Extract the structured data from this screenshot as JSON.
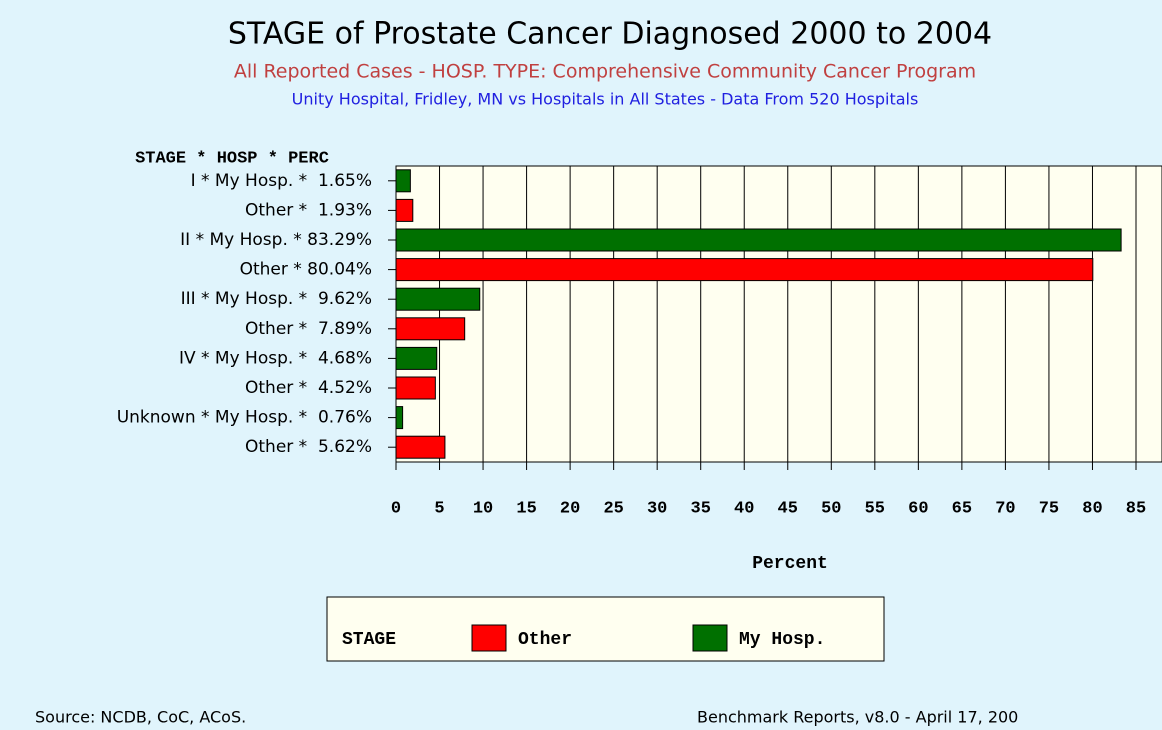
{
  "chart_data": {
    "type": "bar",
    "orientation": "horizontal",
    "title": "STAGE of Prostate Cancer Diagnosed 2000 to 2004",
    "subtitle": "All Reported Cases - HOSP. TYPE: Comprehensive Community Cancer Program",
    "subtitle2": "Unity Hospital, Fridley, MN vs Hospitals in All States - Data From 520 Hospitals",
    "y_label": "STAGE * HOSP * PERC",
    "x_label": "Percent",
    "categories": [
      "I * My Hosp. *  1.65%",
      "Other *  1.93%",
      "II * My Hosp. * 83.29%",
      "Other * 80.04%",
      "III * My Hosp. *  9.62%",
      "Other *  7.89%",
      "IV * My Hosp. *  4.68%",
      "Other *  4.52%",
      "Unknown * My Hosp. *  0.76%",
      "Other *  5.62%"
    ],
    "values": [
      1.65,
      1.93,
      83.29,
      80.04,
      9.62,
      7.89,
      4.68,
      4.52,
      0.76,
      5.62
    ],
    "colors": [
      "#007000",
      "#ff0000",
      "#007000",
      "#ff0000",
      "#007000",
      "#ff0000",
      "#007000",
      "#ff0000",
      "#007000",
      "#ff0000"
    ],
    "xlim": [
      0,
      85
    ],
    "xticks": [
      0,
      5,
      10,
      15,
      20,
      25,
      30,
      35,
      40,
      45,
      50,
      55,
      60,
      65,
      70,
      75,
      80,
      85
    ],
    "grid": true,
    "legend": {
      "title": "STAGE",
      "items": [
        {
          "name": "Other",
          "color": "#ff0000"
        },
        {
          "name": "My Hosp.",
          "color": "#007000"
        }
      ]
    },
    "source": "Source: NCDB, CoC, ACoS.",
    "credit": "Benchmark Reports, v8.0 - April 17, 200"
  }
}
